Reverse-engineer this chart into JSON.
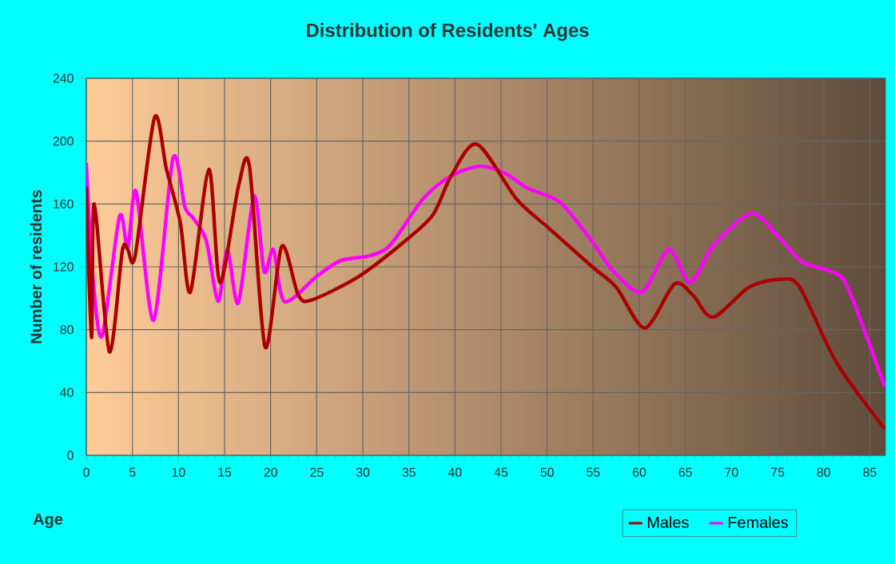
{
  "chart_data": {
    "type": "line",
    "title": "Distribution of Residents' Ages",
    "xlabel": "Age",
    "ylabel": "Number of residents",
    "xlim": [
      0,
      86.7
    ],
    "ylim": [
      0,
      240
    ],
    "xticks": [
      0,
      5,
      10,
      15,
      20,
      25,
      30,
      35,
      40,
      45,
      50,
      55,
      60,
      65,
      70,
      75,
      80,
      85
    ],
    "yticks": [
      0,
      40,
      80,
      120,
      160,
      200,
      240
    ],
    "grid": true,
    "legend": "bottom",
    "marker": "none",
    "line_style": "solid",
    "series": [
      {
        "name": "Males",
        "color": "#aa0000",
        "x": [
          0,
          0.57,
          0.86,
          2.5,
          3.9,
          4.5,
          5.3,
          7.4,
          8.7,
          10.2,
          11.3,
          13.3,
          14.5,
          16.5,
          17.7,
          19.4,
          21.2,
          23,
          24.5,
          29.6,
          34.5,
          37.6,
          39.6,
          42.4,
          46.7,
          50.3,
          54.9,
          57.5,
          60.6,
          63.8,
          65.8,
          68,
          71.9,
          75.3,
          77.4,
          81.4,
          86.6
        ],
        "values": [
          171,
          75,
          160,
          66,
          130,
          131,
          127,
          215,
          182,
          148,
          104,
          182,
          110,
          171,
          184,
          69,
          133,
          102,
          99,
          114,
          136,
          153,
          178,
          198,
          163,
          144,
          120,
          107,
          81,
          109,
          102,
          88,
          107,
          112,
          107,
          59,
          17
        ]
      },
      {
        "name": "Females",
        "color": "#ff00ff",
        "x": [
          0,
          0.7,
          1.7,
          3.6,
          4.5,
          5.4,
          7.3,
          9.4,
          10.7,
          11.6,
          13,
          14.3,
          15.3,
          16.5,
          18.2,
          19.3,
          20.3,
          21.5,
          25,
          27.6,
          30.7,
          33,
          36.5,
          39.6,
          42.7,
          45.3,
          47.9,
          51.4,
          54.9,
          57.2,
          60.3,
          63.2,
          65.5,
          68.1,
          72.2,
          75.1,
          77.7,
          80.8,
          82.6,
          86.6
        ],
        "values": [
          186,
          114,
          76,
          152,
          132,
          168,
          86,
          189,
          158,
          151,
          137,
          98,
          131,
          97,
          165,
          117,
          131,
          98,
          114,
          124,
          127,
          134,
          163,
          178,
          184,
          180,
          170,
          161,
          136,
          117,
          104,
          131,
          110,
          134,
          154,
          139,
          123,
          117,
          107,
          44
        ]
      }
    ]
  }
}
